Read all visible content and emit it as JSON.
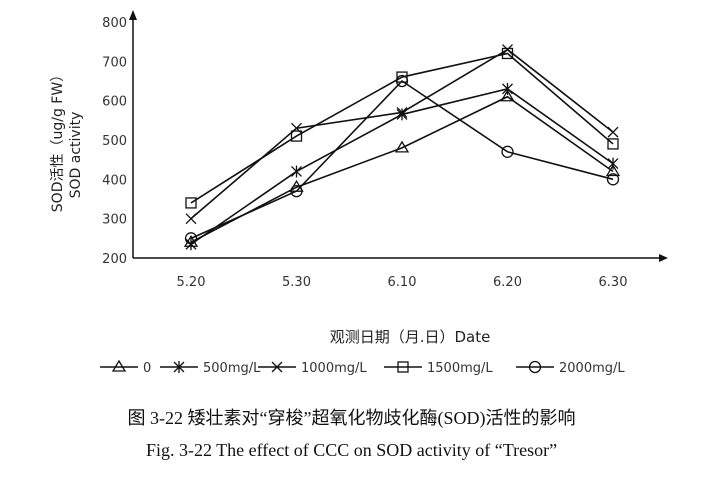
{
  "chart_data": {
    "type": "line",
    "xlabel": "观测日期（月.日）Date",
    "ylabel": [
      "SOD活性（ug/g FW）",
      "SOD activity"
    ],
    "categories": [
      "5.20",
      "5.30",
      "6.10",
      "6.20",
      "6.30"
    ],
    "ylim": [
      200,
      800
    ],
    "yticks": [
      "200",
      "300",
      "400",
      "500",
      "600",
      "700",
      "800"
    ],
    "grid": false,
    "legend": "bottom",
    "series": [
      {
        "name": "0",
        "marker": "triangle",
        "values": [
          240,
          380,
          480,
          610,
          420
        ]
      },
      {
        "name": "500mg/L",
        "marker": "asterisk",
        "values": [
          235,
          420,
          565,
          630,
          440
        ]
      },
      {
        "name": "1000mg/L",
        "marker": "x",
        "values": [
          300,
          530,
          570,
          730,
          520
        ]
      },
      {
        "name": "1500mg/L",
        "marker": "square",
        "values": [
          340,
          510,
          660,
          720,
          490
        ]
      },
      {
        "name": "2000mg/L",
        "marker": "circle",
        "values": [
          250,
          370,
          650,
          470,
          400
        ]
      }
    ]
  },
  "caption_cn": "图 3-22  矮壮素对“穿梭”超氧化物歧化酶(SOD)活性的影响",
  "caption_en": "Fig. 3-22 The effect of CCC on SOD activity of “Tresor”"
}
